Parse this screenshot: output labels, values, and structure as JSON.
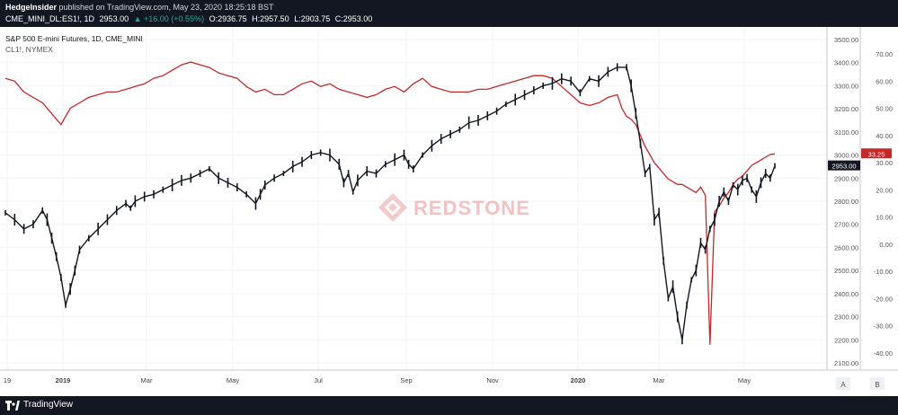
{
  "header": {
    "author": "HedgeInsider",
    "published": "published on TradingView.com, May 23, 2020 18:25:18 BST",
    "symbol": "CME_MINI_DL:ES1!, 1D",
    "last": "2953.00",
    "change": "▲ +16.00 (+0.55%)",
    "open": "O:2936.75",
    "high": "H:2957.50",
    "low": "L:2903.75",
    "close": "C:2953.00"
  },
  "legend": {
    "series1": "S&P 500 E-mini Futures, 1D, CME_MINI",
    "series2": "CL1!, NYMEX"
  },
  "watermark": {
    "text": "REDSTONE"
  },
  "footer": {
    "brand": "TradingView",
    "btn_a": "A",
    "btn_b": "B"
  },
  "colors": {
    "es_line": "#131722",
    "cl_line": "#c62828",
    "badge_red": "#c62828",
    "badge_dark": "#131722"
  },
  "chart_data": {
    "type": "line",
    "x_tick_labels": [
      "19",
      "2019",
      "Mar",
      "May",
      "Jul",
      "Sep",
      "Nov",
      "2020",
      "Mar",
      "May"
    ],
    "left_axis_note": "no left axis printed",
    "right_axis_primary": {
      "ticks": [
        "3500.00",
        "3400.00",
        "3300.00",
        "3200.00",
        "3100.00",
        "3000.00",
        "2900.00",
        "2800.00",
        "2700.00",
        "2600.00",
        "2500.00",
        "2400.00",
        "2300.00",
        "2200.00",
        "2100.00"
      ],
      "range": [
        2100,
        3500
      ]
    },
    "right_axis_secondary": {
      "ticks": [
        "70.00",
        "60.00",
        "50.00",
        "40.00",
        "30.00",
        "20.00",
        "10.00",
        "0.00",
        "-10.00",
        "-20.00",
        "-30.00",
        "-40.00"
      ],
      "range": [
        -40,
        70
      ]
    },
    "last_value_badges": {
      "cl": "33.25",
      "es": "2953.00"
    },
    "series": [
      {
        "name": "S&P 500 E-mini Futures, 1D, CME_MINI",
        "axis": "primary",
        "points": [
          [
            0,
            2750
          ],
          [
            2,
            2720
          ],
          [
            4,
            2680
          ],
          [
            6,
            2700
          ],
          [
            8,
            2760
          ],
          [
            9,
            2720
          ],
          [
            10,
            2640
          ],
          [
            11,
            2560
          ],
          [
            12,
            2470
          ],
          [
            13,
            2350
          ],
          [
            14,
            2420
          ],
          [
            15,
            2500
          ],
          [
            16,
            2590
          ],
          [
            18,
            2640
          ],
          [
            20,
            2680
          ],
          [
            22,
            2720
          ],
          [
            24,
            2760
          ],
          [
            26,
            2790
          ],
          [
            27,
            2770
          ],
          [
            28,
            2800
          ],
          [
            30,
            2820
          ],
          [
            32,
            2830
          ],
          [
            34,
            2850
          ],
          [
            36,
            2870
          ],
          [
            38,
            2890
          ],
          [
            40,
            2900
          ],
          [
            42,
            2920
          ],
          [
            44,
            2940
          ],
          [
            46,
            2900
          ],
          [
            48,
            2880
          ],
          [
            50,
            2860
          ],
          [
            52,
            2830
          ],
          [
            54,
            2790
          ],
          [
            55,
            2830
          ],
          [
            56,
            2870
          ],
          [
            58,
            2900
          ],
          [
            60,
            2920
          ],
          [
            62,
            2950
          ],
          [
            64,
            2970
          ],
          [
            66,
            3000
          ],
          [
            68,
            3010
          ],
          [
            70,
            3000
          ],
          [
            72,
            2960
          ],
          [
            73,
            2880
          ],
          [
            74,
            2920
          ],
          [
            75,
            2840
          ],
          [
            76,
            2890
          ],
          [
            78,
            2930
          ],
          [
            80,
            2920
          ],
          [
            82,
            2960
          ],
          [
            84,
            2980
          ],
          [
            86,
            3000
          ],
          [
            87,
            2960
          ],
          [
            88,
            2940
          ],
          [
            90,
            3000
          ],
          [
            92,
            3040
          ],
          [
            94,
            3070
          ],
          [
            96,
            3090
          ],
          [
            98,
            3110
          ],
          [
            100,
            3140
          ],
          [
            102,
            3150
          ],
          [
            104,
            3170
          ],
          [
            106,
            3190
          ],
          [
            108,
            3220
          ],
          [
            110,
            3240
          ],
          [
            112,
            3260
          ],
          [
            114,
            3280
          ],
          [
            116,
            3300
          ],
          [
            118,
            3310
          ],
          [
            120,
            3330
          ],
          [
            122,
            3320
          ],
          [
            124,
            3270
          ],
          [
            126,
            3330
          ],
          [
            128,
            3320
          ],
          [
            130,
            3360
          ],
          [
            132,
            3380
          ],
          [
            134,
            3380
          ],
          [
            135,
            3300
          ],
          [
            136,
            3180
          ],
          [
            137,
            3050
          ],
          [
            138,
            2920
          ],
          [
            139,
            2950
          ],
          [
            140,
            2720
          ],
          [
            141,
            2750
          ],
          [
            142,
            2540
          ],
          [
            143,
            2380
          ],
          [
            144,
            2430
          ],
          [
            145,
            2300
          ],
          [
            146,
            2200
          ],
          [
            147,
            2350
          ],
          [
            148,
            2460
          ],
          [
            149,
            2500
          ],
          [
            150,
            2620
          ],
          [
            151,
            2590
          ],
          [
            152,
            2680
          ],
          [
            153,
            2720
          ],
          [
            154,
            2800
          ],
          [
            155,
            2840
          ],
          [
            156,
            2800
          ],
          [
            157,
            2870
          ],
          [
            158,
            2850
          ],
          [
            159,
            2890
          ],
          [
            160,
            2900
          ],
          [
            161,
            2850
          ],
          [
            162,
            2820
          ],
          [
            163,
            2880
          ],
          [
            164,
            2920
          ],
          [
            165,
            2900
          ],
          [
            166,
            2953
          ]
        ]
      },
      {
        "name": "CL1!, NYMEX",
        "axis": "secondary",
        "points": [
          [
            0,
            61
          ],
          [
            2,
            60
          ],
          [
            4,
            56
          ],
          [
            6,
            54
          ],
          [
            8,
            52
          ],
          [
            10,
            48
          ],
          [
            11,
            46
          ],
          [
            12,
            44
          ],
          [
            13,
            47
          ],
          [
            14,
            50
          ],
          [
            16,
            52
          ],
          [
            18,
            54
          ],
          [
            20,
            55
          ],
          [
            22,
            56
          ],
          [
            24,
            56
          ],
          [
            26,
            57
          ],
          [
            28,
            58
          ],
          [
            30,
            59
          ],
          [
            32,
            61
          ],
          [
            34,
            62
          ],
          [
            36,
            64
          ],
          [
            38,
            66
          ],
          [
            40,
            67
          ],
          [
            42,
            66
          ],
          [
            44,
            65
          ],
          [
            46,
            63
          ],
          [
            48,
            62
          ],
          [
            50,
            61
          ],
          [
            52,
            58
          ],
          [
            54,
            56
          ],
          [
            56,
            57
          ],
          [
            58,
            55
          ],
          [
            60,
            55
          ],
          [
            62,
            57
          ],
          [
            64,
            59
          ],
          [
            66,
            60
          ],
          [
            68,
            58
          ],
          [
            70,
            59
          ],
          [
            72,
            57
          ],
          [
            74,
            56
          ],
          [
            76,
            55
          ],
          [
            78,
            54
          ],
          [
            80,
            55
          ],
          [
            82,
            57
          ],
          [
            84,
            58
          ],
          [
            86,
            56
          ],
          [
            88,
            59
          ],
          [
            90,
            61
          ],
          [
            92,
            58
          ],
          [
            94,
            57
          ],
          [
            96,
            56
          ],
          [
            98,
            56
          ],
          [
            100,
            56
          ],
          [
            102,
            57
          ],
          [
            104,
            57
          ],
          [
            106,
            58
          ],
          [
            108,
            59
          ],
          [
            110,
            60
          ],
          [
            112,
            61
          ],
          [
            114,
            62
          ],
          [
            116,
            62
          ],
          [
            118,
            61
          ],
          [
            120,
            58
          ],
          [
            122,
            55
          ],
          [
            124,
            52
          ],
          [
            126,
            51
          ],
          [
            128,
            52
          ],
          [
            130,
            54
          ],
          [
            132,
            55
          ],
          [
            133,
            50
          ],
          [
            134,
            47
          ],
          [
            135,
            46
          ],
          [
            136,
            44
          ],
          [
            137,
            40
          ],
          [
            138,
            36
          ],
          [
            139,
            33
          ],
          [
            140,
            30
          ],
          [
            141,
            28
          ],
          [
            142,
            26
          ],
          [
            143,
            24
          ],
          [
            144,
            23
          ],
          [
            145,
            22
          ],
          [
            146,
            22
          ],
          [
            147,
            21
          ],
          [
            148,
            20
          ],
          [
            149,
            19
          ],
          [
            150,
            21
          ],
          [
            151,
            18
          ],
          [
            152,
            -37
          ],
          [
            153,
            12
          ],
          [
            154,
            14
          ],
          [
            155,
            17
          ],
          [
            156,
            19
          ],
          [
            157,
            22
          ],
          [
            158,
            24
          ],
          [
            159,
            25
          ],
          [
            160,
            27
          ],
          [
            161,
            29
          ],
          [
            162,
            30
          ],
          [
            163,
            31
          ],
          [
            164,
            32
          ],
          [
            165,
            33
          ],
          [
            166,
            33.25
          ]
        ]
      }
    ]
  }
}
